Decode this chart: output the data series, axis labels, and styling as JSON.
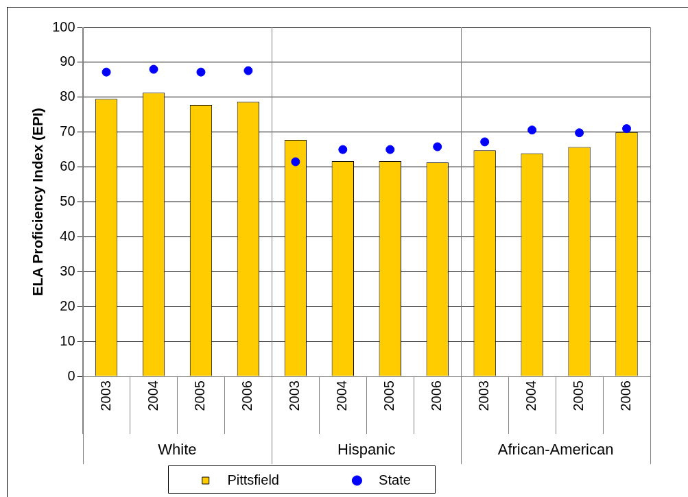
{
  "chart_data": {
    "type": "bar",
    "ylabel": "ELA Proficiency Index (EPI)",
    "categories": [
      "2003",
      "2004",
      "2005",
      "2006",
      "2003",
      "2004",
      "2005",
      "2006",
      "2003",
      "2004",
      "2005",
      "2006"
    ],
    "annotations": [
      "White",
      "Hispanic",
      "African-American"
    ],
    "series": [
      {
        "name": "Pittsfield",
        "color": "#ffcc00",
        "values": [
          79.5,
          81.3,
          77.8,
          78.7,
          67.8,
          61.7,
          61.7,
          61.3,
          64.8,
          63.9,
          65.7,
          70.0
        ]
      },
      {
        "name": "State",
        "type": "scatter",
        "color": "#0000ff",
        "values": [
          87.2,
          88.0,
          87.2,
          87.6,
          61.5,
          65.0,
          65.0,
          65.8,
          67.2,
          70.6,
          69.8,
          71.0
        ]
      }
    ],
    "ylim": [
      0,
      100
    ],
    "yticks": [
      0,
      10,
      20,
      30,
      40,
      50,
      60,
      70,
      80,
      90,
      100
    ],
    "grid": "y",
    "legend": "bottom",
    "marker": "circle"
  }
}
